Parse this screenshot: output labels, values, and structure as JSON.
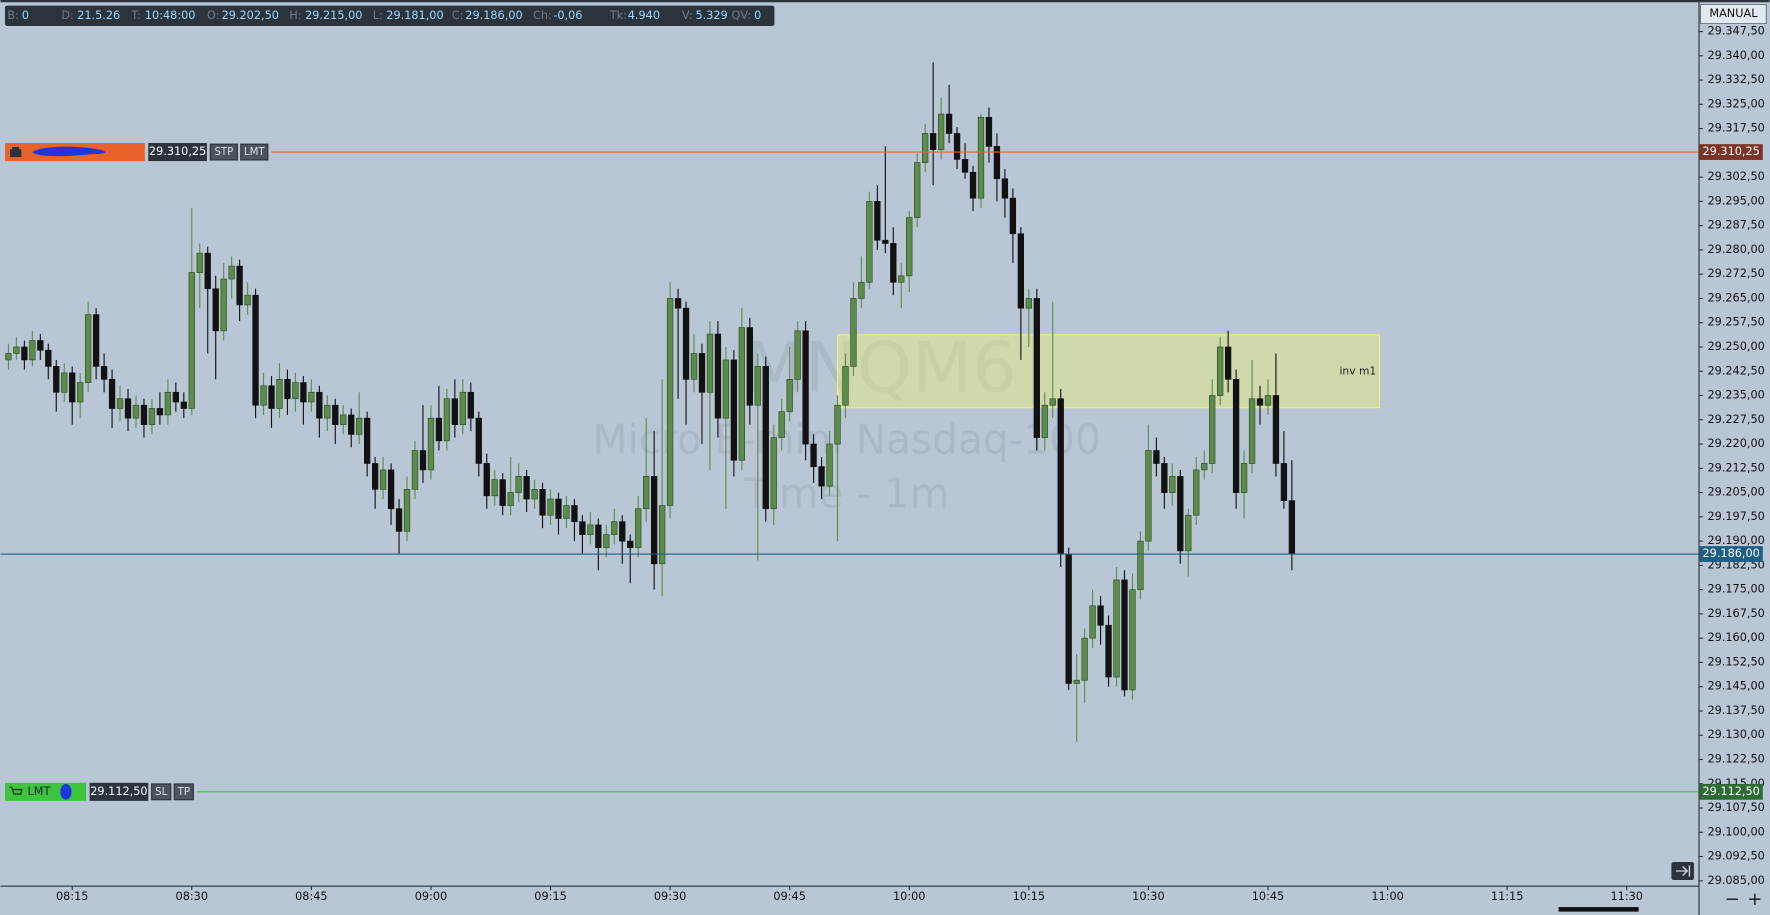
{
  "header": {
    "fields": [
      {
        "label": "B:",
        "value": "0"
      },
      {
        "label": "D:",
        "value": "21.5.26"
      },
      {
        "label": "T:",
        "value": "10:48:00"
      },
      {
        "label": "O:",
        "value": "29.202,50"
      },
      {
        "label": "H:",
        "value": "29.215,00"
      },
      {
        "label": "L:",
        "value": "29.181,00"
      },
      {
        "label": "C:",
        "value": "29.186,00"
      },
      {
        "label": "Ch:",
        "value": "-0,06"
      },
      {
        "label": "Tk:",
        "value": "4.940"
      },
      {
        "label": "V:",
        "value": "5.329"
      },
      {
        "label": "QV:",
        "value": "0"
      }
    ]
  },
  "mode_label": "MANUAL",
  "chart_data": {
    "type": "candlestick",
    "symbol": "MNQM6",
    "description": "Micro E-mini Nasdaq-100",
    "timeframe": "Time - 1m",
    "up_color": "#5d8c4a",
    "down_color": "#121212",
    "x": [
      "08:07",
      "08:08",
      "08:09",
      "08:10",
      "08:11",
      "08:12",
      "08:13",
      "08:14",
      "08:15",
      "08:16",
      "08:17",
      "08:18",
      "08:19",
      "08:20",
      "08:21",
      "08:22",
      "08:23",
      "08:24",
      "08:25",
      "08:26",
      "08:27",
      "08:28",
      "08:29",
      "08:30",
      "08:31",
      "08:32",
      "08:33",
      "08:34",
      "08:35",
      "08:36",
      "08:37",
      "08:38",
      "08:39",
      "08:40",
      "08:41",
      "08:42",
      "08:43",
      "08:44",
      "08:45",
      "08:46",
      "08:47",
      "08:48",
      "08:49",
      "08:50",
      "08:51",
      "08:52",
      "08:53",
      "08:54",
      "08:55",
      "08:56",
      "08:57",
      "08:58",
      "08:59",
      "09:00",
      "09:01",
      "09:02",
      "09:03",
      "09:04",
      "09:05",
      "09:06",
      "09:07",
      "09:08",
      "09:09",
      "09:10",
      "09:11",
      "09:12",
      "09:13",
      "09:14",
      "09:15",
      "09:16",
      "09:17",
      "09:18",
      "09:19",
      "09:20",
      "09:21",
      "09:22",
      "09:23",
      "09:24",
      "09:25",
      "09:26",
      "09:27",
      "09:28",
      "09:29",
      "09:30",
      "09:31",
      "09:32",
      "09:33",
      "09:34",
      "09:35",
      "09:36",
      "09:37",
      "09:38",
      "09:39",
      "09:40",
      "09:41",
      "09:42",
      "09:43",
      "09:44",
      "09:45",
      "09:46",
      "09:47",
      "09:48",
      "09:49",
      "09:50",
      "09:51",
      "09:52",
      "09:53",
      "09:54",
      "09:55",
      "09:56",
      "09:57",
      "09:58",
      "09:59",
      "10:00",
      "10:01",
      "10:02",
      "10:03",
      "10:04",
      "10:05",
      "10:06",
      "10:07",
      "10:08",
      "10:09",
      "10:10",
      "10:11",
      "10:12",
      "10:13",
      "10:14",
      "10:15",
      "10:16",
      "10:17",
      "10:18",
      "10:19",
      "10:20",
      "10:21",
      "10:22",
      "10:23",
      "10:24",
      "10:25",
      "10:26",
      "10:27",
      "10:28",
      "10:29",
      "10:30",
      "10:31",
      "10:32",
      "10:33",
      "10:34",
      "10:35",
      "10:36",
      "10:37",
      "10:38",
      "10:39",
      "10:40",
      "10:41",
      "10:42",
      "10:43",
      "10:44",
      "10:45",
      "10:46",
      "10:47",
      "10:48"
    ],
    "ohlc": [
      [
        29246,
        29251,
        29243,
        29248
      ],
      [
        29248,
        29253,
        29246,
        29250
      ],
      [
        29250,
        29252,
        29243,
        29246
      ],
      [
        29246,
        29255,
        29244,
        29252
      ],
      [
        29252,
        29254,
        29246,
        29249
      ],
      [
        29249,
        29251,
        29240,
        29244
      ],
      [
        29244,
        29246,
        29230,
        29236
      ],
      [
        29236,
        29245,
        29233,
        29242
      ],
      [
        29242,
        29244,
        29226,
        29233
      ],
      [
        29233,
        29242,
        29228,
        29239
      ],
      [
        29239,
        29264,
        29236,
        29260
      ],
      [
        29260,
        29262,
        29240,
        29244
      ],
      [
        29244,
        29248,
        29236,
        29240
      ],
      [
        29240,
        29243,
        29225,
        29231
      ],
      [
        29231,
        29238,
        29227,
        29234
      ],
      [
        29234,
        29237,
        29224,
        29228
      ],
      [
        29228,
        29235,
        29225,
        29232
      ],
      [
        29232,
        29234,
        29222,
        29226
      ],
      [
        29226,
        29234,
        29223,
        29231
      ],
      [
        29231,
        29236,
        29226,
        29229
      ],
      [
        29229,
        29240,
        29226,
        29236
      ],
      [
        29236,
        29239,
        29230,
        29233
      ],
      [
        29233,
        29236,
        29228,
        29231
      ],
      [
        29231,
        29293,
        29229,
        29273
      ],
      [
        29273,
        29282,
        29262,
        29279
      ],
      [
        29279,
        29281,
        29248,
        29268
      ],
      [
        29268,
        29272,
        29240,
        29255
      ],
      [
        29255,
        29276,
        29252,
        29271
      ],
      [
        29271,
        29278,
        29265,
        29275
      ],
      [
        29275,
        29277,
        29258,
        29263
      ],
      [
        29263,
        29270,
        29260,
        29266
      ],
      [
        29266,
        29268,
        29228,
        29232
      ],
      [
        29232,
        29242,
        29229,
        29238
      ],
      [
        29238,
        29241,
        29225,
        29231
      ],
      [
        29231,
        29245,
        29228,
        29240
      ],
      [
        29240,
        29243,
        29229,
        29234
      ],
      [
        29234,
        29242,
        29230,
        29239
      ],
      [
        29239,
        29241,
        29226,
        29233
      ],
      [
        29233,
        29240,
        29230,
        29236
      ],
      [
        29236,
        29238,
        29222,
        29228
      ],
      [
        29228,
        29235,
        29224,
        29232
      ],
      [
        29232,
        29234,
        29220,
        29226
      ],
      [
        29226,
        29232,
        29223,
        29229
      ],
      [
        29229,
        29231,
        29219,
        29223
      ],
      [
        29223,
        29236,
        29220,
        29228
      ],
      [
        29228,
        29230,
        29210,
        29214
      ],
      [
        29214,
        29216,
        29200,
        29206
      ],
      [
        29206,
        29216,
        29203,
        29212
      ],
      [
        29212,
        29214,
        29195,
        29200
      ],
      [
        29200,
        29203,
        29186,
        29193
      ],
      [
        29193,
        29210,
        29190,
        29206
      ],
      [
        29206,
        29221,
        29203,
        29218
      ],
      [
        29218,
        29232,
        29208,
        29212
      ],
      [
        29212,
        29232,
        29209,
        29228
      ],
      [
        29228,
        29238,
        29218,
        29221
      ],
      [
        29221,
        29237,
        29218,
        29234
      ],
      [
        29234,
        29240,
        29222,
        29226
      ],
      [
        29226,
        29240,
        29223,
        29236
      ],
      [
        29236,
        29239,
        29224,
        29228
      ],
      [
        29228,
        29230,
        29210,
        29214
      ],
      [
        29214,
        29217,
        29200,
        29204
      ],
      [
        29204,
        29212,
        29201,
        29209
      ],
      [
        29209,
        29211,
        29198,
        29201
      ],
      [
        29201,
        29216,
        29198,
        29205
      ],
      [
        29205,
        29214,
        29202,
        29210
      ],
      [
        29210,
        29212,
        29199,
        29203
      ],
      [
        29203,
        29209,
        29200,
        29206
      ],
      [
        29206,
        29208,
        29194,
        29198
      ],
      [
        29198,
        29206,
        29195,
        29203
      ],
      [
        29203,
        29205,
        29192,
        29197
      ],
      [
        29197,
        29204,
        29194,
        29201
      ],
      [
        29201,
        29203,
        29190,
        29196
      ],
      [
        29196,
        29198,
        29186,
        29192
      ],
      [
        29192,
        29199,
        29189,
        29195
      ],
      [
        29195,
        29197,
        29181,
        29188
      ],
      [
        29188,
        29195,
        29185,
        29192
      ],
      [
        29192,
        29200,
        29189,
        29196
      ],
      [
        29196,
        29198,
        29183,
        29190
      ],
      [
        29190,
        29192,
        29177,
        29188
      ],
      [
        29188,
        29204,
        29185,
        29200
      ],
      [
        29200,
        29228,
        29196,
        29210
      ],
      [
        29210,
        29224,
        29175,
        29183
      ],
      [
        29183,
        29240,
        29173,
        29201
      ],
      [
        29201,
        29270,
        29197,
        29265
      ],
      [
        29265,
        29268,
        29234,
        29262
      ],
      [
        29262,
        29264,
        29226,
        29240
      ],
      [
        29240,
        29254,
        29236,
        29248
      ],
      [
        29248,
        29251,
        29220,
        29236
      ],
      [
        29236,
        29258,
        29212,
        29254
      ],
      [
        29254,
        29258,
        29222,
        29228
      ],
      [
        29228,
        29250,
        29200,
        29246
      ],
      [
        29246,
        29249,
        29210,
        29215
      ],
      [
        29215,
        29262,
        29212,
        29256
      ],
      [
        29256,
        29259,
        29226,
        29232
      ],
      [
        29232,
        29248,
        29184,
        29244
      ],
      [
        29244,
        29247,
        29196,
        29200
      ],
      [
        29200,
        29226,
        29195,
        29222
      ],
      [
        29222,
        29234,
        29218,
        29230
      ],
      [
        29230,
        29250,
        29227,
        29240
      ],
      [
        29240,
        29258,
        29236,
        29255
      ],
      [
        29255,
        29258,
        29215,
        29220
      ],
      [
        29220,
        29223,
        29208,
        29213
      ],
      [
        29213,
        29216,
        29203,
        29207
      ],
      [
        29207,
        29224,
        29204,
        29220
      ],
      [
        29220,
        29235,
        29190,
        29232
      ],
      [
        29232,
        29248,
        29228,
        29244
      ],
      [
        29244,
        29270,
        29241,
        29265
      ],
      [
        29265,
        29278,
        29262,
        29270
      ],
      [
        29270,
        29298,
        29268,
        29295
      ],
      [
        29295,
        29300,
        29280,
        29283
      ],
      [
        29283,
        29312,
        29279,
        29282
      ],
      [
        29282,
        29287,
        29266,
        29270
      ],
      [
        29270,
        29276,
        29262,
        29272
      ],
      [
        29272,
        29292,
        29267,
        29290
      ],
      [
        29290,
        29310,
        29287,
        29307
      ],
      [
        29307,
        29319,
        29304,
        29316
      ],
      [
        29316,
        29338,
        29300,
        29311
      ],
      [
        29311,
        29327,
        29308,
        29322
      ],
      [
        29322,
        29331,
        29313,
        29316
      ],
      [
        29316,
        29318,
        29305,
        29308
      ],
      [
        29308,
        29313,
        29302,
        29304
      ],
      [
        29304,
        29306,
        29292,
        29296
      ],
      [
        29296,
        29322,
        29293,
        29321
      ],
      [
        29321,
        29324,
        29307,
        29312
      ],
      [
        29312,
        29316,
        29295,
        29302
      ],
      [
        29302,
        29305,
        29290,
        29296
      ],
      [
        29296,
        29299,
        29276,
        29285
      ],
      [
        29285,
        29287,
        29246,
        29262
      ],
      [
        29262,
        29268,
        29250,
        29265
      ],
      [
        29265,
        29268,
        29218,
        29222
      ],
      [
        29222,
        29236,
        29218,
        29232
      ],
      [
        29232,
        29264,
        29228,
        29234
      ],
      [
        29234,
        29237,
        29182,
        29186
      ],
      [
        29186,
        29188,
        29144,
        29146
      ],
      [
        29146,
        29155,
        29128,
        29147
      ],
      [
        29147,
        29163,
        29140,
        29160
      ],
      [
        29160,
        29175,
        29157,
        29170
      ],
      [
        29170,
        29173,
        29158,
        29164
      ],
      [
        29164,
        29167,
        29145,
        29148
      ],
      [
        29148,
        29182,
        29145,
        29178
      ],
      [
        29178,
        29181,
        29142,
        29144
      ],
      [
        29144,
        29180,
        29141,
        29175
      ],
      [
        29175,
        29193,
        29172,
        29190
      ],
      [
        29190,
        29226,
        29187,
        29218
      ],
      [
        29218,
        29222,
        29210,
        29214
      ],
      [
        29214,
        29216,
        29200,
        29205
      ],
      [
        29205,
        29214,
        29201,
        29210
      ],
      [
        29210,
        29212,
        29183,
        29187
      ],
      [
        29187,
        29200,
        29179,
        29198
      ],
      [
        29198,
        29216,
        29195,
        29212
      ],
      [
        29212,
        29218,
        29209,
        29214
      ],
      [
        29214,
        29240,
        29211,
        29235
      ],
      [
        29235,
        29253,
        29232,
        29250
      ],
      [
        29250,
        29255,
        29236,
        29240
      ],
      [
        29240,
        29243,
        29200,
        29205
      ],
      [
        29205,
        29218,
        29197,
        29214
      ],
      [
        29214,
        29246,
        29211,
        29234
      ],
      [
        29234,
        29238,
        29226,
        29232
      ],
      [
        29232,
        29240,
        29229,
        29235
      ],
      [
        29235,
        29248,
        29210,
        29214
      ],
      [
        29214,
        29224,
        29200,
        29202.5
      ],
      [
        29202.5,
        29215,
        29181,
        29186
      ]
    ],
    "xlim": [
      "08:06",
      "11:39"
    ],
    "xticks": [
      "08:15",
      "08:30",
      "08:45",
      "09:00",
      "09:15",
      "09:30",
      "09:45",
      "10:00",
      "10:15",
      "10:30",
      "10:45",
      "11:00",
      "11:15",
      "11:30"
    ],
    "ylim": [
      29083.5,
      29357.25
    ],
    "yticks": [
      {
        "value": 29347.5,
        "label": "29.347,50"
      },
      {
        "value": 29340,
        "label": "29.340,00"
      },
      {
        "value": 29332.5,
        "label": "29.332,50"
      },
      {
        "value": 29325,
        "label": "29.325,00"
      },
      {
        "value": 29317.5,
        "label": "29.317,50"
      },
      {
        "value": 29302.5,
        "label": "29.302,50"
      },
      {
        "value": 29295,
        "label": "29.295,00"
      },
      {
        "value": 29287.5,
        "label": "29.287,50"
      },
      {
        "value": 29280,
        "label": "29.280,00"
      },
      {
        "value": 29272.5,
        "label": "29.272,50"
      },
      {
        "value": 29265,
        "label": "29.265,00"
      },
      {
        "value": 29257.5,
        "label": "29.257,50"
      },
      {
        "value": 29250,
        "label": "29.250,00"
      },
      {
        "value": 29242.5,
        "label": "29.242,50"
      },
      {
        "value": 29235,
        "label": "29.235,00"
      },
      {
        "value": 29227.5,
        "label": "29.227,50"
      },
      {
        "value": 29220,
        "label": "29.220,00"
      },
      {
        "value": 29212.5,
        "label": "29.212,50"
      },
      {
        "value": 29205,
        "label": "29.205,00"
      },
      {
        "value": 29197.5,
        "label": "29.197,50"
      },
      {
        "value": 29190,
        "label": "29.190,00"
      },
      {
        "value": 29182.5,
        "label": "29.182,50"
      },
      {
        "value": 29175,
        "label": "29.175,00"
      },
      {
        "value": 29167.5,
        "label": "29.167,50"
      },
      {
        "value": 29160,
        "label": "29.160,00"
      },
      {
        "value": 29152.5,
        "label": "29.152,50"
      },
      {
        "value": 29145,
        "label": "29.145,00"
      },
      {
        "value": 29137.5,
        "label": "29.137,50"
      },
      {
        "value": 29130,
        "label": "29.130,00"
      },
      {
        "value": 29122.5,
        "label": "29.122,50"
      },
      {
        "value": 29115,
        "label": "29.115,00"
      },
      {
        "value": 29107.5,
        "label": "29.107,50"
      },
      {
        "value": 29100,
        "label": "29.100,00"
      },
      {
        "value": 29092.5,
        "label": "29.092,50"
      },
      {
        "value": 29085,
        "label": "29.085,00"
      }
    ],
    "zone": {
      "label": "inv m1",
      "x": [
        "09:51",
        "10:59"
      ],
      "y": [
        29231.25,
        29253.75
      ],
      "color": "#eef07a"
    },
    "last_price": {
      "price": 29186,
      "price_label": "29.186,00",
      "color": "#1d5f84"
    },
    "orders": [
      {
        "price": 29310.25,
        "price_label": "29.310,25",
        "buttons": [
          "STP",
          "LMT"
        ],
        "color": "#e8632a",
        "axis_color": "#7b3526"
      },
      {
        "label": "LMT",
        "price": 29112.5,
        "price_label": "29.112,50",
        "buttons": [
          "SL",
          "TP"
        ],
        "color": "#3ec43e",
        "axis_color": "#2e6a34"
      }
    ]
  }
}
